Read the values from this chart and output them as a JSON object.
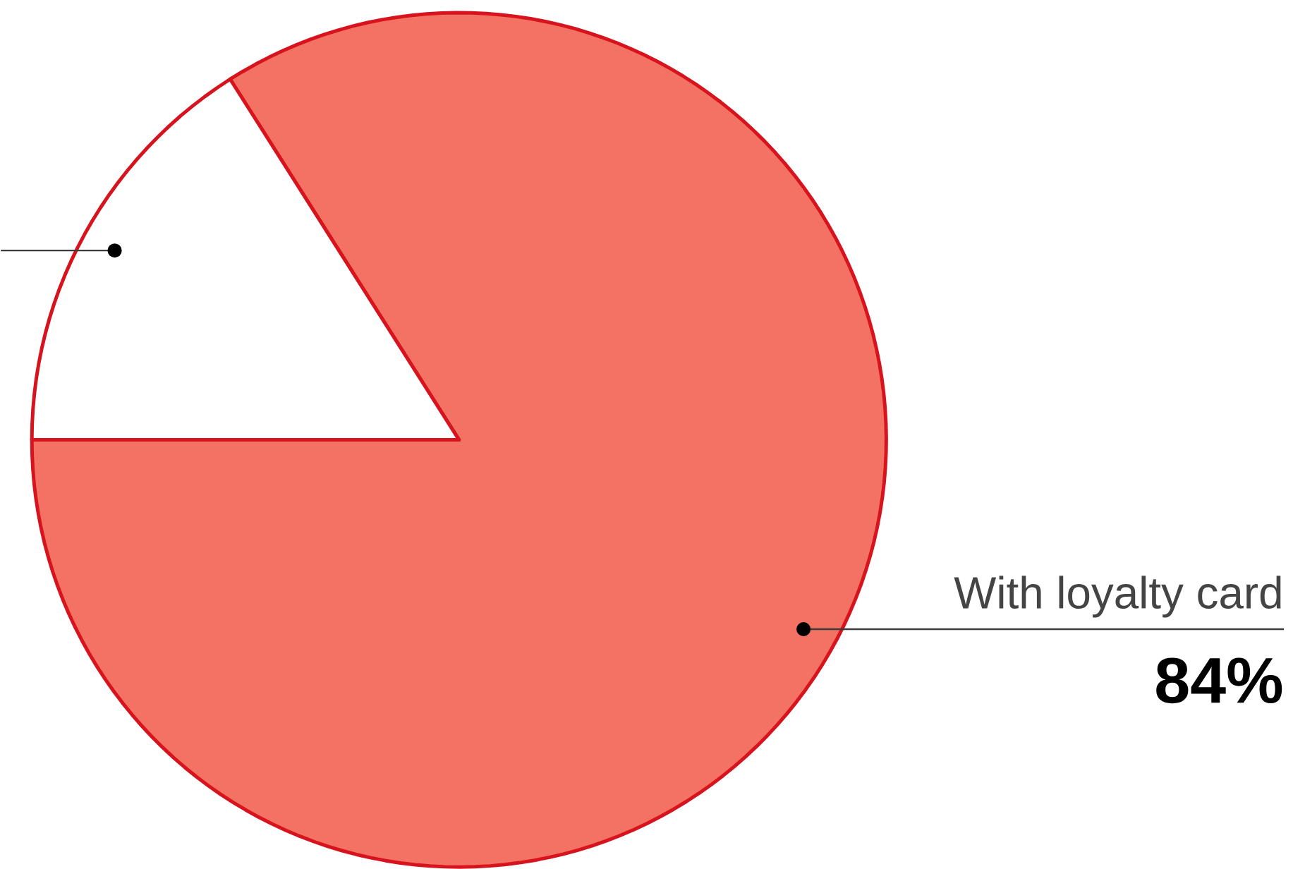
{
  "chart_data": {
    "type": "pie",
    "categories": [
      "With loyalty card",
      null
    ],
    "values": [
      84,
      16
    ],
    "colors": [
      "#f47264",
      "#ffffff"
    ],
    "value_labels": [
      "84%",
      null
    ]
  }
}
